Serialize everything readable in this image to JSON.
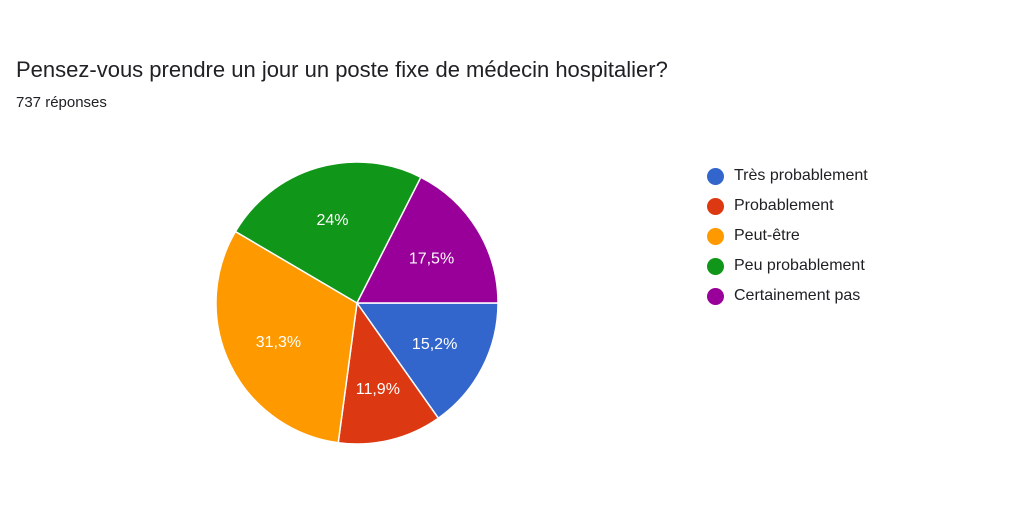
{
  "header": {
    "title": "Pensez-vous prendre un jour un poste fixe de médecin hospitalier?",
    "responses": "737 réponses"
  },
  "chart_data": {
    "type": "pie",
    "categories": [
      "Très probablement",
      "Probablement",
      "Peut-être",
      "Peu probablement",
      "Certainement pas"
    ],
    "values": [
      15.2,
      11.9,
      31.3,
      24,
      17.5
    ],
    "labels": [
      "15,2%",
      "11,9%",
      "31,3%",
      "24%",
      "17,5%"
    ],
    "colors": [
      "#3366cc",
      "#dc3912",
      "#ff9900",
      "#109618",
      "#990099"
    ],
    "legend_position": "right"
  }
}
